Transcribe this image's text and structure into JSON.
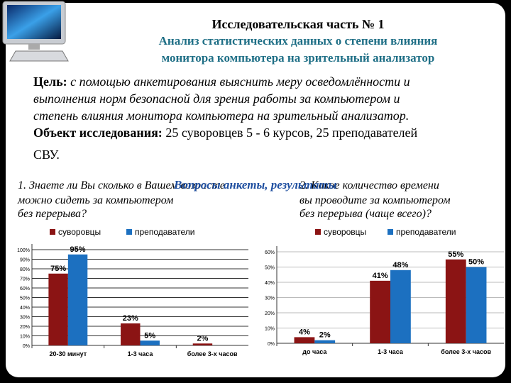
{
  "header": {
    "title": "Исследовательская часть № 1",
    "subtitle_lines": [
      "Анализ статистических данных о степени влияния",
      "монитора компьютера  на зрительный анализатор"
    ]
  },
  "goal": {
    "label": "Цель:",
    "lines": [
      "с помощью анкетирования выяснить меру осведомлённости и",
      "выполнения норм безопасной для зрения работы за компьютером и",
      "степень влияния монитора компьютера  на зрительный анализатор."
    ]
  },
  "object": {
    "label": "Объект исследования:",
    "lines": [
      "25 суворовцев 5 - 6 курсов, 25 преподавателей",
      "СВУ."
    ]
  },
  "section_title": "Вопросы анкеты, результаты",
  "question1": [
    "1. Знаете ли Вы сколько в Вашем возрасте",
    "можно сидеть за компьютером",
    "без перерыва?"
  ],
  "question2": [
    "2. Какое количество времени",
    "вы проводите за компьютером",
    "без перерыва (чаще всего)?"
  ],
  "chart_data": [
    {
      "type": "bar",
      "categories": [
        "20-30 минут",
        "1-3 часа",
        "более 3-х часов"
      ],
      "series": [
        {
          "name": "суворовцы",
          "color": "#8b1414",
          "values": [
            75,
            23,
            2
          ],
          "value_labels": [
            "75%",
            "23%",
            "2%"
          ]
        },
        {
          "name": "преподаватели",
          "color": "#1c70c0",
          "values": [
            95,
            5,
            null
          ],
          "value_labels": [
            "95%",
            "5%",
            null
          ]
        }
      ],
      "ylim": [
        0,
        100
      ],
      "yticks": [
        {
          "value": 0,
          "label": "0%"
        },
        {
          "value": 10,
          "label": "10%"
        },
        {
          "value": 20,
          "label": "20%"
        },
        {
          "value": 30,
          "label": "30%"
        },
        {
          "value": 40,
          "label": "40%"
        },
        {
          "value": 50,
          "label": "50%"
        },
        {
          "value": 60,
          "label": "60%"
        },
        {
          "value": 70,
          "label": "70%"
        },
        {
          "value": 80,
          "label": "80%"
        },
        {
          "value": 90,
          "label": "90%"
        },
        {
          "value": 100,
          "label": "100%"
        }
      ],
      "grid": true,
      "grid_color": "#333333",
      "legend": "top"
    },
    {
      "type": "bar",
      "categories": [
        "до часа",
        "1-3 часа",
        "более 3-х часов"
      ],
      "series": [
        {
          "name": "суворовцы",
          "color": "#8b1414",
          "values": [
            4,
            41,
            55
          ],
          "value_labels": [
            "4%",
            "41%",
            "55%"
          ]
        },
        {
          "name": "преподаватели",
          "color": "#1c70c0",
          "values": [
            2,
            48,
            50
          ],
          "value_labels": [
            "2%",
            "48%",
            "50%"
          ]
        }
      ],
      "ylim": [
        0,
        60
      ],
      "yticks": [
        {
          "value": 0,
          "label": "0%"
        },
        {
          "value": 10,
          "label": "10%"
        },
        {
          "value": 20,
          "label": "20%"
        },
        {
          "value": 30,
          "label": "30%"
        },
        {
          "value": 40,
          "label": "40%"
        },
        {
          "value": 50,
          "label": "50%"
        },
        {
          "value": 60,
          "label": "60%"
        }
      ],
      "grid": true,
      "grid_color": "#bbbbbb",
      "legend": "top"
    }
  ]
}
